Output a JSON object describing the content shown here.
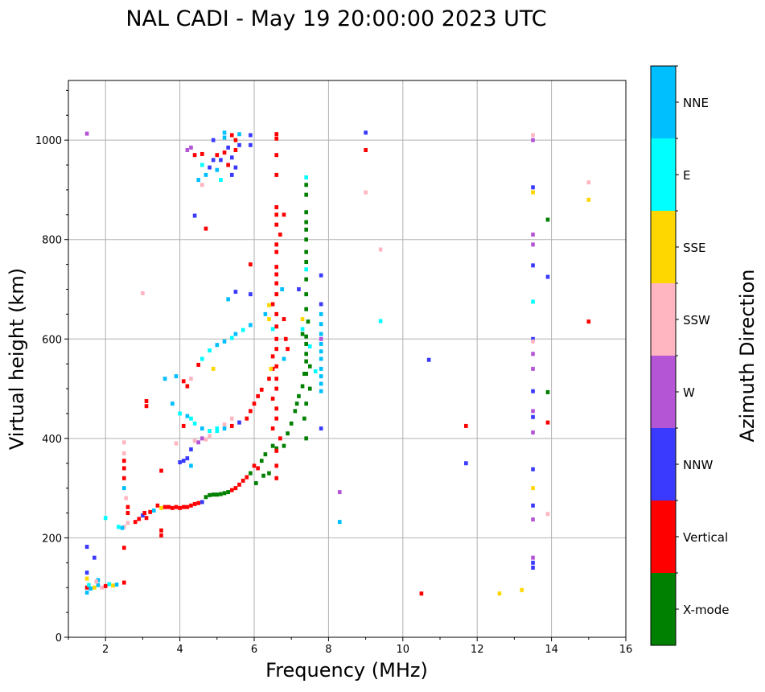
{
  "chart_data": {
    "type": "scatter",
    "title": "NAL CADI - May 19 20:00:00 2023 UTC",
    "xlabel": "Frequency (MHz)",
    "ylabel": "Virtual height (km)",
    "xlim": [
      1,
      16
    ],
    "ylim": [
      0,
      1120
    ],
    "xticks": [
      2,
      4,
      6,
      8,
      10,
      12,
      14,
      16
    ],
    "yticks": [
      0,
      200,
      400,
      600,
      800,
      1000
    ],
    "grid": true,
    "colorbar": {
      "label": "Azimuth Direction",
      "categories": [
        "X-mode",
        "Vertical",
        "NNW",
        "W",
        "SSW",
        "SSE",
        "E",
        "NNE"
      ],
      "colors": [
        "#008000",
        "#ff0000",
        "#3a3aff",
        "#b455d6",
        "#ffb6c1",
        "#ffd700",
        "#00ffff",
        "#00bfff"
      ]
    },
    "points_format": "[frequency_MHz, virtual_height_km, direction_index]",
    "points": [
      [
        1.5,
        1013,
        3
      ],
      [
        1.5,
        100,
        1
      ],
      [
        1.55,
        105,
        6
      ],
      [
        1.6,
        98,
        7
      ],
      [
        1.7,
        100,
        5
      ],
      [
        1.8,
        105,
        7
      ],
      [
        1.9,
        100,
        4
      ],
      [
        2.0,
        103,
        1
      ],
      [
        2.1,
        107,
        6
      ],
      [
        2.2,
        104,
        5
      ],
      [
        2.3,
        106,
        7
      ],
      [
        2.5,
        110,
        1
      ],
      [
        1.5,
        130,
        2
      ],
      [
        1.5,
        118,
        5
      ],
      [
        1.5,
        90,
        7
      ],
      [
        1.8,
        115,
        7
      ],
      [
        1.7,
        160,
        2
      ],
      [
        1.5,
        182,
        2
      ],
      [
        1.75,
        112,
        4
      ],
      [
        2.5,
        180,
        1
      ],
      [
        2.5,
        222,
        4
      ],
      [
        2.45,
        220,
        7
      ],
      [
        2.35,
        222,
        6
      ],
      [
        2.0,
        240,
        6
      ],
      [
        2.6,
        250,
        1
      ],
      [
        2.6,
        262,
        1
      ],
      [
        2.55,
        280,
        4
      ],
      [
        2.5,
        300,
        7
      ],
      [
        2.5,
        320,
        1
      ],
      [
        2.5,
        340,
        1
      ],
      [
        2.5,
        355,
        1
      ],
      [
        2.5,
        370,
        4
      ],
      [
        2.5,
        392,
        4
      ],
      [
        2.6,
        230,
        4
      ],
      [
        2.8,
        232,
        1
      ],
      [
        2.9,
        238,
        1
      ],
      [
        3.0,
        245,
        2
      ],
      [
        3.05,
        250,
        1
      ],
      [
        3.1,
        240,
        1
      ],
      [
        3.2,
        252,
        1
      ],
      [
        3.3,
        255,
        7
      ],
      [
        3.4,
        265,
        1
      ],
      [
        3.5,
        260,
        5
      ],
      [
        3.6,
        262,
        1
      ],
      [
        3.7,
        262,
        1
      ],
      [
        3.8,
        260,
        1
      ],
      [
        3.9,
        262,
        1
      ],
      [
        4.0,
        260,
        1
      ],
      [
        4.1,
        262,
        1
      ],
      [
        4.2,
        262,
        1
      ],
      [
        4.3,
        265,
        1
      ],
      [
        4.4,
        268,
        1
      ],
      [
        4.5,
        270,
        1
      ],
      [
        4.6,
        272,
        2
      ],
      [
        4.7,
        282,
        0
      ],
      [
        4.8,
        286,
        0
      ],
      [
        4.9,
        287,
        0
      ],
      [
        5.0,
        287,
        0
      ],
      [
        5.1,
        288,
        0
      ],
      [
        5.2,
        290,
        0
      ],
      [
        5.3,
        292,
        0
      ],
      [
        5.4,
        296,
        1
      ],
      [
        5.5,
        300,
        1
      ],
      [
        5.6,
        307,
        1
      ],
      [
        5.7,
        315,
        1
      ],
      [
        5.8,
        322,
        1
      ],
      [
        5.9,
        330,
        0
      ],
      [
        6.0,
        345,
        1
      ],
      [
        6.05,
        310,
        0
      ],
      [
        6.1,
        340,
        1
      ],
      [
        6.2,
        355,
        0
      ],
      [
        6.25,
        325,
        0
      ],
      [
        6.3,
        368,
        0
      ],
      [
        6.4,
        330,
        0
      ],
      [
        6.5,
        385,
        0
      ],
      [
        6.6,
        380,
        0
      ],
      [
        6.8,
        385,
        0
      ],
      [
        6.9,
        410,
        0
      ],
      [
        7.0,
        430,
        0
      ],
      [
        7.1,
        455,
        0
      ],
      [
        7.15,
        470,
        0
      ],
      [
        7.2,
        485,
        0
      ],
      [
        7.3,
        505,
        0
      ],
      [
        7.35,
        530,
        0
      ],
      [
        7.4,
        555,
        0
      ],
      [
        7.4,
        590,
        0
      ],
      [
        7.3,
        610,
        0
      ],
      [
        3.5,
        205,
        1
      ],
      [
        3.5,
        215,
        1
      ],
      [
        3.5,
        335,
        1
      ],
      [
        3.1,
        475,
        1
      ],
      [
        3.9,
        390,
        4
      ],
      [
        4.0,
        352,
        2
      ],
      [
        4.1,
        355,
        2
      ],
      [
        4.2,
        360,
        2
      ],
      [
        4.3,
        345,
        7
      ],
      [
        4.3,
        378,
        2
      ],
      [
        4.4,
        395,
        4
      ],
      [
        4.5,
        392,
        3
      ],
      [
        4.6,
        400,
        3
      ],
      [
        4.7,
        398,
        4
      ],
      [
        4.8,
        405,
        4
      ],
      [
        5.0,
        415,
        6
      ],
      [
        5.2,
        420,
        7
      ],
      [
        5.4,
        425,
        1
      ],
      [
        5.6,
        432,
        4
      ],
      [
        5.8,
        440,
        1
      ],
      [
        5.9,
        455,
        1
      ],
      [
        6.0,
        470,
        1
      ],
      [
        6.1,
        485,
        1
      ],
      [
        6.2,
        498,
        1
      ],
      [
        6.4,
        520,
        1
      ],
      [
        6.5,
        540,
        1
      ],
      [
        3.8,
        470,
        7
      ],
      [
        4.0,
        450,
        6
      ],
      [
        4.2,
        445,
        7
      ],
      [
        4.4,
        430,
        6
      ],
      [
        4.6,
        420,
        7
      ],
      [
        4.8,
        415,
        6
      ],
      [
        5.0,
        420,
        6
      ],
      [
        5.2,
        428,
        4
      ],
      [
        5.4,
        440,
        4
      ],
      [
        5.6,
        432,
        2
      ],
      [
        4.1,
        425,
        1
      ],
      [
        4.3,
        440,
        6
      ],
      [
        3.1,
        465,
        1
      ],
      [
        3.6,
        520,
        7
      ],
      [
        3.9,
        525,
        7
      ],
      [
        4.1,
        515,
        1
      ],
      [
        4.2,
        505,
        1
      ],
      [
        4.3,
        520,
        4
      ],
      [
        4.6,
        560,
        6
      ],
      [
        4.8,
        577,
        6
      ],
      [
        5.0,
        588,
        7
      ],
      [
        5.2,
        595,
        7
      ],
      [
        5.4,
        602,
        6
      ],
      [
        5.5,
        610,
        7
      ],
      [
        5.7,
        618,
        6
      ],
      [
        5.9,
        628,
        7
      ],
      [
        4.5,
        548,
        1
      ],
      [
        4.9,
        540,
        5
      ],
      [
        5.3,
        680,
        7
      ],
      [
        5.9,
        690,
        2
      ],
      [
        5.9,
        750,
        1
      ],
      [
        5.5,
        695,
        2
      ],
      [
        3.0,
        692,
        4
      ],
      [
        6.6,
        320,
        1
      ],
      [
        6.6,
        345,
        1
      ],
      [
        6.6,
        375,
        1
      ],
      [
        6.7,
        400,
        1
      ],
      [
        6.5,
        420,
        1
      ],
      [
        6.6,
        440,
        1
      ],
      [
        6.6,
        460,
        1
      ],
      [
        6.5,
        480,
        1
      ],
      [
        6.6,
        500,
        1
      ],
      [
        6.6,
        520,
        1
      ],
      [
        6.6,
        545,
        1
      ],
      [
        6.5,
        565,
        1
      ],
      [
        6.6,
        580,
        1
      ],
      [
        6.6,
        600,
        1
      ],
      [
        6.6,
        625,
        1
      ],
      [
        6.6,
        650,
        1
      ],
      [
        6.5,
        670,
        1
      ],
      [
        6.6,
        690,
        1
      ],
      [
        6.6,
        712,
        1
      ],
      [
        6.6,
        730,
        1
      ],
      [
        6.6,
        745,
        1
      ],
      [
        6.6,
        775,
        1
      ],
      [
        6.6,
        790,
        1
      ],
      [
        6.7,
        810,
        1
      ],
      [
        6.6,
        830,
        1
      ],
      [
        6.6,
        850,
        1
      ],
      [
        6.6,
        865,
        1
      ],
      [
        6.6,
        930,
        1
      ],
      [
        6.6,
        970,
        1
      ],
      [
        6.6,
        1012,
        1
      ],
      [
        6.6,
        1003,
        1
      ],
      [
        6.85,
        600,
        1
      ],
      [
        6.8,
        640,
        1
      ],
      [
        6.9,
        580,
        1
      ],
      [
        6.8,
        850,
        1
      ],
      [
        6.4,
        640,
        5
      ],
      [
        6.4,
        668,
        5
      ],
      [
        6.3,
        650,
        7
      ],
      [
        6.5,
        620,
        6
      ],
      [
        6.8,
        560,
        7
      ],
      [
        6.75,
        700,
        7
      ],
      [
        6.45,
        540,
        5
      ],
      [
        7.4,
        400,
        0
      ],
      [
        7.35,
        440,
        0
      ],
      [
        7.4,
        470,
        0
      ],
      [
        7.5,
        500,
        0
      ],
      [
        7.4,
        530,
        0
      ],
      [
        7.5,
        545,
        0
      ],
      [
        7.4,
        570,
        0
      ],
      [
        7.4,
        605,
        0
      ],
      [
        7.45,
        635,
        0
      ],
      [
        7.4,
        660,
        0
      ],
      [
        7.4,
        690,
        0
      ],
      [
        7.4,
        720,
        0
      ],
      [
        7.4,
        755,
        0
      ],
      [
        7.4,
        775,
        0
      ],
      [
        7.4,
        800,
        0
      ],
      [
        7.4,
        820,
        0
      ],
      [
        7.4,
        835,
        0
      ],
      [
        7.4,
        855,
        0
      ],
      [
        7.4,
        890,
        0
      ],
      [
        7.4,
        910,
        0
      ],
      [
        7.4,
        925,
        6
      ],
      [
        7.4,
        740,
        6
      ],
      [
        7.3,
        640,
        5
      ],
      [
        7.5,
        585,
        6
      ],
      [
        7.3,
        620,
        6
      ],
      [
        7.2,
        700,
        2
      ],
      [
        7.8,
        495,
        7
      ],
      [
        7.8,
        510,
        7
      ],
      [
        7.8,
        525,
        7
      ],
      [
        7.8,
        540,
        7
      ],
      [
        7.8,
        560,
        7
      ],
      [
        7.8,
        575,
        7
      ],
      [
        7.8,
        590,
        7
      ],
      [
        7.8,
        610,
        7
      ],
      [
        7.8,
        630,
        7
      ],
      [
        7.8,
        650,
        7
      ],
      [
        7.8,
        670,
        2
      ],
      [
        7.8,
        728,
        2
      ],
      [
        7.8,
        600,
        3
      ],
      [
        7.8,
        420,
        2
      ],
      [
        7.65,
        535,
        6
      ],
      [
        4.5,
        920,
        7
      ],
      [
        4.6,
        910,
        4
      ],
      [
        4.6,
        950,
        6
      ],
      [
        4.7,
        930,
        7
      ],
      [
        4.8,
        945,
        2
      ],
      [
        4.9,
        960,
        2
      ],
      [
        5.0,
        970,
        1
      ],
      [
        5.1,
        960,
        2
      ],
      [
        5.2,
        975,
        1
      ],
      [
        5.3,
        985,
        2
      ],
      [
        5.3,
        950,
        1
      ],
      [
        5.4,
        965,
        2
      ],
      [
        5.5,
        980,
        1
      ],
      [
        5.5,
        1000,
        1
      ],
      [
        5.5,
        945,
        2
      ],
      [
        5.6,
        990,
        2
      ],
      [
        5.6,
        1012,
        7
      ],
      [
        5.4,
        1010,
        1
      ],
      [
        5.2,
        1005,
        7
      ],
      [
        4.4,
        970,
        1
      ],
      [
        4.6,
        972,
        1
      ],
      [
        4.9,
        1000,
        2
      ],
      [
        5.0,
        940,
        7
      ],
      [
        5.2,
        1015,
        7
      ],
      [
        5.9,
        1010,
        2
      ],
      [
        5.9,
        990,
        2
      ],
      [
        4.2,
        980,
        3
      ],
      [
        4.3,
        985,
        3
      ],
      [
        4.7,
        822,
        1
      ],
      [
        4.4,
        848,
        2
      ],
      [
        5.4,
        930,
        2
      ],
      [
        5.1,
        920,
        6
      ],
      [
        8.3,
        292,
        3
      ],
      [
        8.3,
        232,
        7
      ],
      [
        9.0,
        1015,
        2
      ],
      [
        9.0,
        980,
        1
      ],
      [
        9.0,
        895,
        4
      ],
      [
        9.4,
        780,
        4
      ],
      [
        9.4,
        636,
        6
      ],
      [
        10.5,
        88,
        1
      ],
      [
        10.7,
        558,
        2
      ],
      [
        11.7,
        425,
        1
      ],
      [
        11.7,
        350,
        2
      ],
      [
        12.6,
        88,
        5
      ],
      [
        13.2,
        95,
        5
      ],
      [
        13.5,
        1010,
        4
      ],
      [
        13.5,
        1000,
        3
      ],
      [
        13.5,
        905,
        2
      ],
      [
        13.5,
        895,
        5
      ],
      [
        13.5,
        810,
        3
      ],
      [
        13.5,
        790,
        3
      ],
      [
        13.5,
        748,
        2
      ],
      [
        13.5,
        675,
        6
      ],
      [
        13.5,
        600,
        2
      ],
      [
        13.5,
        595,
        4
      ],
      [
        13.5,
        570,
        3
      ],
      [
        13.5,
        540,
        3
      ],
      [
        13.5,
        495,
        2
      ],
      [
        13.5,
        455,
        3
      ],
      [
        13.5,
        443,
        2
      ],
      [
        13.5,
        412,
        3
      ],
      [
        13.5,
        338,
        2
      ],
      [
        13.5,
        300,
        5
      ],
      [
        13.5,
        265,
        2
      ],
      [
        13.5,
        237,
        3
      ],
      [
        13.5,
        160,
        3
      ],
      [
        13.5,
        150,
        2
      ],
      [
        13.5,
        140,
        2
      ],
      [
        13.9,
        840,
        0
      ],
      [
        13.9,
        725,
        2
      ],
      [
        13.9,
        493,
        0
      ],
      [
        13.9,
        432,
        1
      ],
      [
        13.9,
        248,
        4
      ],
      [
        15.0,
        915,
        4
      ],
      [
        15.0,
        880,
        5
      ],
      [
        15.0,
        635,
        1
      ]
    ]
  }
}
